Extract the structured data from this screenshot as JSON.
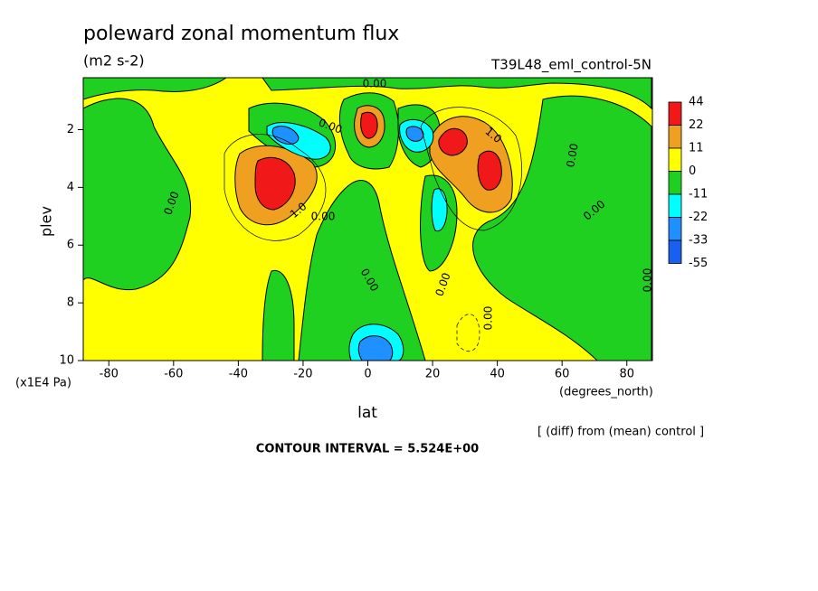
{
  "chart_data": {
    "type": "contour",
    "title": "poleward zonal momentum flux",
    "units": "(m2 s-2)",
    "dataset": "T39L48_eml_control-5N",
    "xlabel": "lat",
    "x_units": "(degrees_north)",
    "ylabel": "plev",
    "y_units": "(x1E4 Pa)",
    "note": "[ (diff) from (mean) control ]",
    "contour_interval": "CONTOUR INTERVAL = 5.524E+00",
    "xlim": [
      -87.9,
      87.9
    ],
    "ylim": [
      0.2,
      10
    ],
    "y_reversed": true,
    "xticks": [
      -80,
      -60,
      -40,
      -20,
      0,
      20,
      40,
      60,
      80
    ],
    "yticks": [
      2,
      4,
      6,
      8,
      10
    ],
    "levels": [
      44,
      22,
      11,
      0,
      -11,
      -22,
      -33,
      -55
    ],
    "level_colors": [
      "#f01818",
      "#f0a020",
      "#ffff00",
      "#20d020",
      "#00ffff",
      "#1e90ff",
      "#1860f0"
    ],
    "contour_labels": [
      "0.00",
      "0.00",
      "0.00",
      "1.0",
      "0.00",
      "1.0",
      "0.00",
      "0.00",
      "0.00",
      "0.00",
      "0.00",
      "0.00"
    ]
  }
}
